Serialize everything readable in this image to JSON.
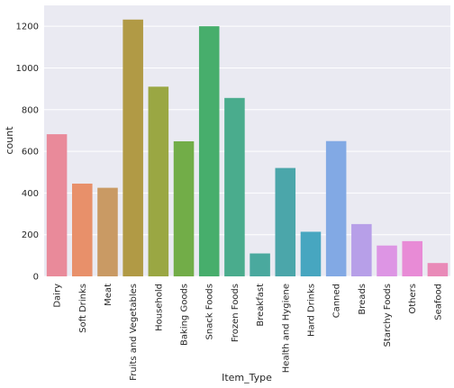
{
  "chart_data": {
    "type": "bar",
    "xlabel": "Item_Type",
    "ylabel": "count",
    "ylim": [
      0,
      1300
    ],
    "yticks": [
      0,
      200,
      400,
      600,
      800,
      1000,
      1200
    ],
    "grid": true,
    "background": "#eaeaf2",
    "categories": [
      "Dairy",
      "Soft Drinks",
      "Meat",
      "Fruits and Vegetables",
      "Household",
      "Baking Goods",
      "Snack Foods",
      "Frozen Foods",
      "Breakfast",
      "Health and Hygiene",
      "Hard Drinks",
      "Canned",
      "Breads",
      "Starchy Foods",
      "Others",
      "Seafood"
    ],
    "values": [
      682,
      445,
      425,
      1232,
      910,
      648,
      1200,
      856,
      110,
      520,
      214,
      649,
      251,
      148,
      169,
      64
    ],
    "colors": [
      "#e98a9a",
      "#e8906a",
      "#c99a64",
      "#b19a45",
      "#9aa743",
      "#72ad48",
      "#47ae6c",
      "#4aac8d",
      "#4aa99e",
      "#4ba6aa",
      "#47a6c0",
      "#82a9e4",
      "#b79fe8",
      "#dd95e4",
      "#e88bd6",
      "#e98ab8"
    ]
  }
}
